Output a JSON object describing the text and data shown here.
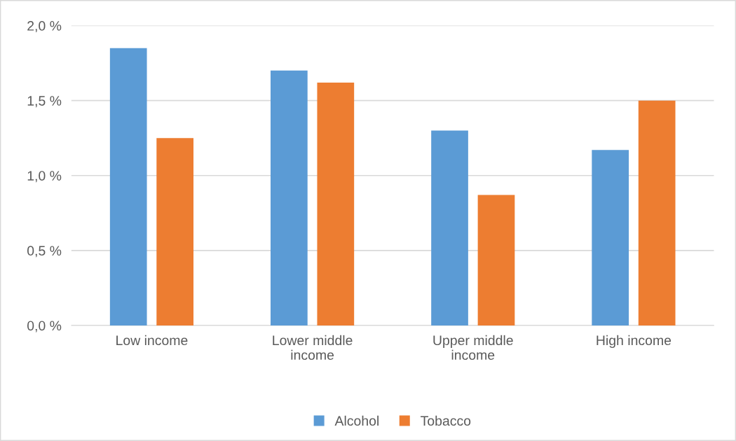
{
  "chart_data": {
    "type": "bar",
    "categories": [
      "Low income",
      "Lower middle income",
      "Upper middle income",
      "High income"
    ],
    "series": [
      {
        "name": "Alcohol",
        "color": "#5b9bd5",
        "values": [
          1.85,
          1.7,
          1.3,
          1.17
        ]
      },
      {
        "name": "Tobacco",
        "color": "#ed7d31",
        "values": [
          1.25,
          1.62,
          0.87,
          1.5
        ]
      }
    ],
    "ylim": [
      0,
      2.0
    ],
    "yticks": [
      {
        "value": 0,
        "label": "0,0 %"
      },
      {
        "value": 0.5,
        "label": "0,5 %"
      },
      {
        "value": 1.0,
        "label": "1,0 %"
      },
      {
        "value": 1.5,
        "label": "1,5 %"
      },
      {
        "value": 2.0,
        "label": "2,0 %"
      }
    ],
    "grid": "y",
    "legend": "bottom"
  }
}
